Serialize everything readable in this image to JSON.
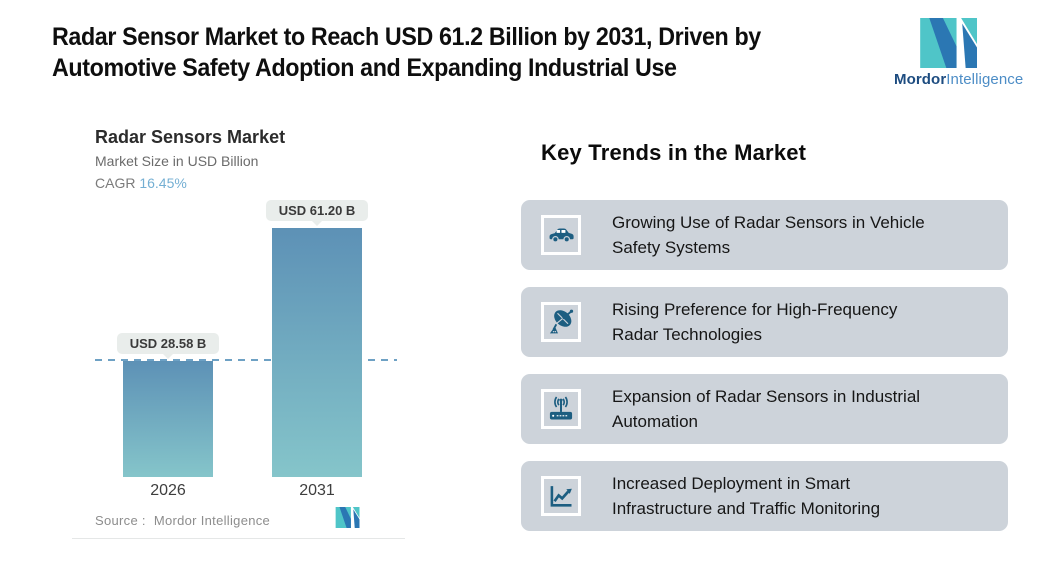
{
  "header": {
    "title": "Radar Sensor Market to Reach USD 61.2 Billion by 2031, Driven by\nAutomotive Safety Adoption and Expanding Industrial Use",
    "brand_name_bold": "Mordor",
    "brand_name_light": "Intelligence"
  },
  "chart": {
    "title": "Radar Sensors Market",
    "subtitle": "Market Size in USD Billion",
    "cagr_label": "CAGR",
    "cagr_value": "16.45%",
    "source_label": "Source :",
    "source_value": "Mordor Intelligence"
  },
  "chart_data": {
    "type": "bar",
    "title": "Radar Sensors Market",
    "subtitle": "Market Size in USD Billion",
    "unit": "USD Billion",
    "cagr_percent": 16.45,
    "categories": [
      "2026",
      "2031"
    ],
    "values": [
      28.58,
      61.2
    ],
    "value_labels": [
      "USD 28.58 B",
      "USD 61.20 B"
    ],
    "ylim": [
      0,
      65
    ],
    "grid": false,
    "legend": false,
    "reference_line": {
      "y": 28.58,
      "style": "dashed"
    },
    "bar_gradient_top": "#5d91b6",
    "bar_gradient_bottom": "#85c5ca"
  },
  "trends": {
    "heading": "Key Trends in the Market",
    "items": [
      {
        "icon": "car-icon",
        "text": "Growing Use of Radar Sensors in Vehicle\nSafety Systems"
      },
      {
        "icon": "satellite-dish-icon",
        "text": "Rising Preference for High-Frequency\nRadar Technologies"
      },
      {
        "icon": "radio-antenna-icon",
        "text": "Expansion of Radar Sensors in Industrial\nAutomation"
      },
      {
        "icon": "growth-chart-icon",
        "text": "Increased Deployment in Smart\nInfrastructure and Traffic Monitoring"
      }
    ]
  },
  "colors": {
    "brand_teal": "#4fc5c8",
    "brand_blue": "#2b77b3",
    "brand_text_dark": "#1d4c80",
    "brand_text_light": "#4d8dc6",
    "cagr_value": "#74afd3",
    "card_background": "#cdd3da",
    "icon_blue": "#1d5e81",
    "reference_line": "#6ea1c4",
    "pill_background": "#e9edeb"
  }
}
